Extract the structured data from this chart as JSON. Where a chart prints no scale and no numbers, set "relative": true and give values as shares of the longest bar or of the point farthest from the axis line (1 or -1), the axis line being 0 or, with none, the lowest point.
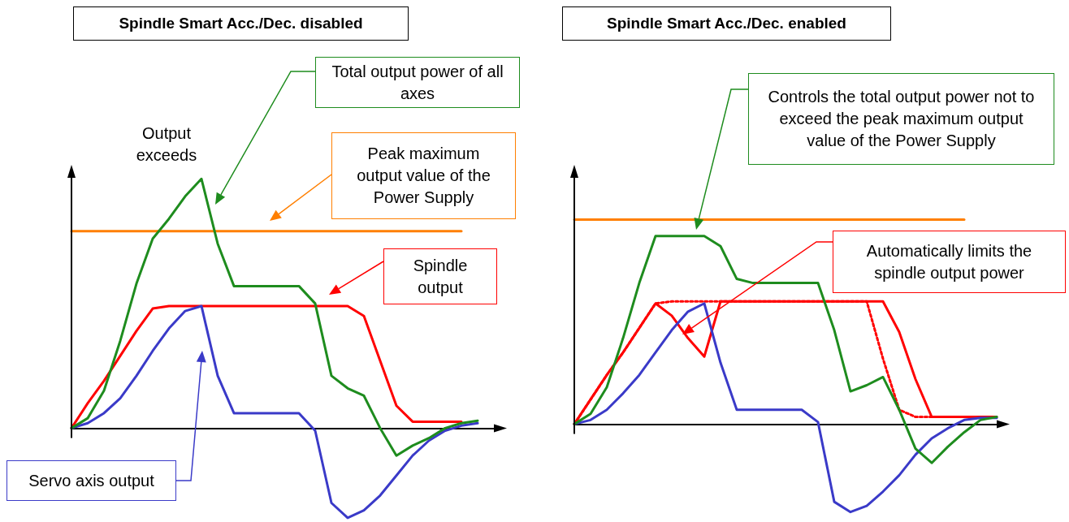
{
  "chart_data": [
    {
      "type": "line",
      "title": "Spindle Smart Acc./Dec. disabled",
      "relative": true,
      "categories": [
        null,
        null,
        null,
        null,
        null,
        null,
        null,
        null,
        null,
        null,
        null,
        null,
        null,
        null,
        null,
        null,
        null,
        null,
        null,
        null,
        null,
        null,
        null,
        null,
        null,
        null,
        null
      ],
      "series": [
        {
          "color": "#ff7f00",
          "values": [
            0.79,
            0.79,
            0.79,
            0.79,
            0.79,
            0.79,
            0.79,
            0.79,
            0.79,
            0.79,
            0.79,
            0.79,
            0.79,
            0.79,
            0.79,
            0.79,
            0.79,
            0.79,
            0.79,
            0.79,
            0.79,
            0.79,
            0.79,
            0.79,
            0.79,
            null,
            null
          ]
        },
        {
          "color": "#ff0000",
          "values": [
            0,
            0.1,
            0.19,
            0.29,
            0.39,
            0.48,
            0.49,
            0.49,
            0.49,
            0.49,
            0.49,
            0.49,
            0.49,
            0.49,
            0.49,
            0.49,
            0.49,
            0.49,
            0.45,
            0.27,
            0.09,
            0.026,
            0.026,
            0.026,
            0.026,
            null,
            null
          ]
        },
        {
          "color": "#3a3ac8",
          "values": [
            0,
            0.02,
            0.06,
            0.12,
            0.21,
            0.31,
            0.4,
            0.47,
            0.49,
            0.21,
            0.06,
            0.06,
            0.06,
            0.06,
            0.06,
            -0.01,
            -0.3,
            -0.36,
            -0.33,
            -0.27,
            -0.19,
            -0.11,
            -0.05,
            -0.01,
            0.01,
            0.02,
            null
          ]
        },
        {
          "color": "#1e8c1e",
          "values": [
            0,
            0.04,
            0.15,
            0.35,
            0.58,
            0.76,
            0.84,
            0.93,
            1.0,
            0.74,
            0.57,
            0.57,
            0.57,
            0.57,
            0.57,
            0.5,
            0.21,
            0.16,
            0.13,
            0.0,
            -0.11,
            -0.07,
            -0.04,
            0.0,
            0.02,
            0.03,
            null
          ]
        }
      ],
      "annotations": [
        "Output exceeds",
        "Total output power of all axes",
        "Peak maximum output value of the Power Supply",
        "Spindle output",
        "Servo axis output"
      ]
    },
    {
      "type": "line",
      "title": "Spindle Smart Acc./Dec. enabled",
      "relative": true,
      "categories": [
        null,
        null,
        null,
        null,
        null,
        null,
        null,
        null,
        null,
        null,
        null,
        null,
        null,
        null,
        null,
        null,
        null,
        null,
        null,
        null,
        null,
        null,
        null,
        null,
        null,
        null,
        null
      ],
      "series": [
        {
          "color": "#ff7f00",
          "values": [
            1.0,
            1.0,
            1.0,
            1.0,
            1.0,
            1.0,
            1.0,
            1.0,
            1.0,
            1.0,
            1.0,
            1.0,
            1.0,
            1.0,
            1.0,
            1.0,
            1.0,
            1.0,
            1.0,
            1.0,
            1.0,
            1.0,
            1.0,
            1.0,
            1.0,
            null,
            null
          ]
        },
        {
          "color": "#ff0000",
          "values": [
            0,
            0.12,
            0.24,
            0.35,
            0.47,
            0.59,
            0.53,
            0.42,
            0.33,
            0.6,
            0.6,
            0.6,
            0.6,
            0.6,
            0.6,
            0.6,
            0.6,
            0.6,
            0.6,
            0.6,
            0.45,
            0.22,
            0.035,
            0.035,
            0.035,
            0.035,
            0.035
          ]
        },
        {
          "color": "#ff0000",
          "line_style": "dotted",
          "values": [
            0,
            0.12,
            0.24,
            0.35,
            0.47,
            0.59,
            0.6,
            0.6,
            0.6,
            0.6,
            0.6,
            0.6,
            0.6,
            0.6,
            0.6,
            0.6,
            0.6,
            0.6,
            0.6,
            0.32,
            0.07,
            0.035,
            0.035,
            0.035,
            0.035,
            0.035,
            0.035
          ]
        },
        {
          "color": "#3a3ac8",
          "values": [
            0,
            0.02,
            0.07,
            0.15,
            0.24,
            0.35,
            0.46,
            0.55,
            0.59,
            0.3,
            0.07,
            0.07,
            0.07,
            0.07,
            0.07,
            0.01,
            -0.38,
            -0.43,
            -0.4,
            -0.33,
            -0.25,
            -0.15,
            -0.07,
            -0.02,
            0.02,
            0.03,
            0.03
          ]
        },
        {
          "color": "#1e8c1e",
          "values": [
            0,
            0.05,
            0.18,
            0.42,
            0.69,
            0.92,
            0.92,
            0.92,
            0.92,
            0.87,
            0.71,
            0.69,
            0.69,
            0.69,
            0.69,
            0.69,
            0.46,
            0.16,
            0.19,
            0.23,
            0.07,
            -0.12,
            -0.19,
            -0.11,
            -0.04,
            0.02,
            0.035
          ]
        }
      ],
      "annotations": [
        "Controls the total output power not to exceed the peak maximum output value of the Power Supply",
        "Automatically limits the spindle output power"
      ]
    }
  ]
}
